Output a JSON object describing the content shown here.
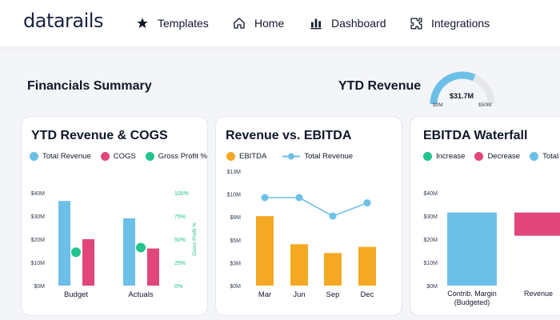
{
  "brand": {
    "name": "datarails"
  },
  "nav": [
    {
      "label": "Templates",
      "icon": "star-icon"
    },
    {
      "label": "Home",
      "icon": "home-icon"
    },
    {
      "label": "Dashboard",
      "icon": "bar-chart-icon"
    },
    {
      "label": "Integrations",
      "icon": "puzzle-icon"
    }
  ],
  "page": {
    "title": "Financials Summary"
  },
  "ytd_revenue": {
    "title": "YTD Revenue",
    "value": "$31.7M",
    "min": "$0M",
    "max": "$50M",
    "fraction": 0.634
  },
  "colors": {
    "blue": "#6cc0e8",
    "pink": "#e0467a",
    "green": "#22c38e",
    "orange": "#f5a823"
  },
  "cards": {
    "rev_cogs": {
      "title": "YTD Revenue & COGS",
      "legend": [
        "Total Revenue",
        "COGS",
        "Gross Profit %"
      ],
      "y_ticks": [
        "$0M",
        "$10M",
        "$20M",
        "$30M",
        "$40M"
      ],
      "y2_ticks": [
        "0%",
        "25%",
        "50%",
        "75%",
        "100%"
      ],
      "y2_label": "Gross Profit %"
    },
    "rev_ebitda": {
      "title": "Revenue vs. EBITDA",
      "legend": [
        "EBITDA",
        "Total Revenue"
      ],
      "y_ticks": [
        "$0M",
        "$3M",
        "$5M",
        "$8M",
        "$10M",
        "$13M"
      ]
    },
    "waterfall": {
      "title": "EBITDA Waterfall",
      "legend": [
        "Increase",
        "Decrease",
        "Total"
      ],
      "y_ticks": [
        "$0M",
        "$10M",
        "$20M",
        "$30M",
        "$40M"
      ],
      "x_labels": [
        "Contrib. Margin\n(Budgeted)",
        "Revenue"
      ]
    }
  },
  "chart_data": [
    {
      "type": "bar",
      "title": "YTD Revenue & COGS",
      "categories": [
        "Budget",
        "Actuals"
      ],
      "series": [
        {
          "name": "Total Revenue",
          "values": [
            36.5,
            29
          ]
        },
        {
          "name": "COGS",
          "values": [
            20,
            16
          ]
        },
        {
          "name": "Gross Profit %",
          "values": [
            36,
            41
          ]
        }
      ],
      "ylim": [
        0,
        40
      ],
      "y2lim": [
        0,
        100
      ],
      "legend": "top-left"
    },
    {
      "type": "bar",
      "title": "Revenue vs. EBITDA",
      "categories": [
        "Mar",
        "Jun",
        "Sep",
        "Dec"
      ],
      "series": [
        {
          "name": "EBITDA",
          "values": [
            7.9,
            4.7,
            3.7,
            4.4
          ]
        },
        {
          "name": "Total Revenue",
          "values": [
            10,
            10,
            7.9,
            9.4
          ]
        }
      ],
      "ylim": [
        0,
        13
      ],
      "legend": "top-left"
    },
    {
      "type": "bar",
      "title": "EBITDA Waterfall",
      "categories": [
        "Contrib. Margin\n(Budgeted)",
        "Revenue"
      ],
      "series": [
        {
          "name": "Total",
          "values": [
            31.5,
            null
          ]
        },
        {
          "name": "Decrease",
          "values": [
            null,
            10
          ]
        }
      ],
      "decrease_range": [
        21.5,
        31.5
      ],
      "ylim": [
        0,
        40
      ],
      "legend": "top-left"
    }
  ]
}
